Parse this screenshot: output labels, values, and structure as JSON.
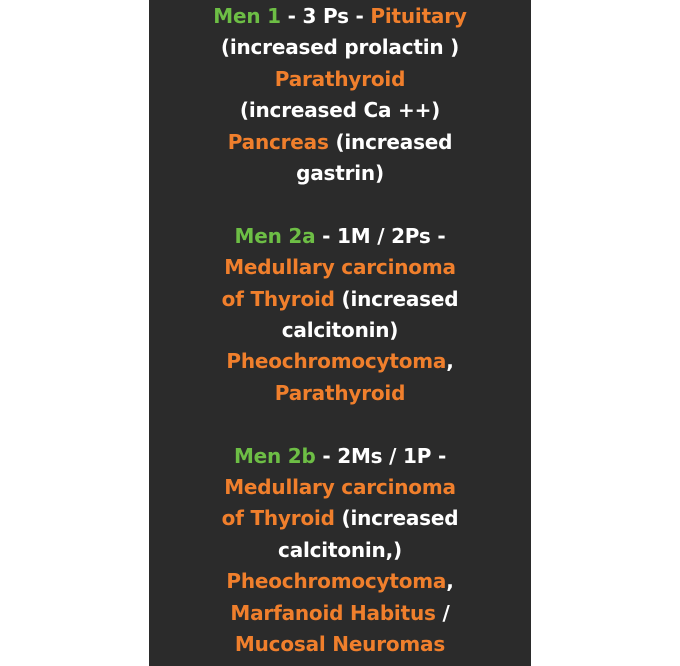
{
  "colors": {
    "background": "#ffffff",
    "panel": "#2b2b2b",
    "heading": "#6dbe45",
    "highlight": "#f07f2c",
    "text": "#ffffff"
  },
  "blocks": [
    {
      "lines": [
        [
          {
            "t": "Men 1",
            "c": "g"
          },
          {
            "t": " - 3 Ps - ",
            "c": "w"
          },
          {
            "t": "Pituitary",
            "c": "o"
          }
        ],
        [
          {
            "t": "(increased prolactin )",
            "c": "w"
          }
        ],
        [
          {
            "t": "Parathyroid",
            "c": "o"
          }
        ],
        [
          {
            "t": "(increased Ca ++)",
            "c": "w"
          }
        ],
        [
          {
            "t": "Pancreas",
            "c": "o"
          },
          {
            "t": " (increased",
            "c": "w"
          }
        ],
        [
          {
            "t": "gastrin)",
            "c": "w"
          }
        ]
      ]
    },
    {
      "lines": [
        [
          {
            "t": "Men 2a",
            "c": "g"
          },
          {
            "t": " - 1M / 2Ps -",
            "c": "w"
          }
        ],
        [
          {
            "t": "Medullary carcinoma",
            "c": "o"
          }
        ],
        [
          {
            "t": "of Thyroid",
            "c": "o"
          },
          {
            "t": " (increased",
            "c": "w"
          }
        ],
        [
          {
            "t": "calcitonin)",
            "c": "w"
          }
        ],
        [
          {
            "t": "Pheochromocytoma",
            "c": "o"
          },
          {
            "t": ",",
            "c": "w"
          }
        ],
        [
          {
            "t": "Parathyroid",
            "c": "o"
          }
        ]
      ]
    },
    {
      "lines": [
        [
          {
            "t": "Men 2b",
            "c": "g"
          },
          {
            "t": " - 2Ms / 1P -",
            "c": "w"
          }
        ],
        [
          {
            "t": "Medullary carcinoma",
            "c": "o"
          }
        ],
        [
          {
            "t": "of Thyroid",
            "c": "o"
          },
          {
            "t": " (increased",
            "c": "w"
          }
        ],
        [
          {
            "t": "calcitonin,)",
            "c": "w"
          }
        ],
        [
          {
            "t": "Pheochromocytoma",
            "c": "o"
          },
          {
            "t": ",",
            "c": "w"
          }
        ],
        [
          {
            "t": "Marfanoid Habitus",
            "c": "o"
          },
          {
            "t": " /",
            "c": "w"
          }
        ],
        [
          {
            "t": "Mucosal Neuromas",
            "c": "o"
          }
        ]
      ]
    }
  ]
}
